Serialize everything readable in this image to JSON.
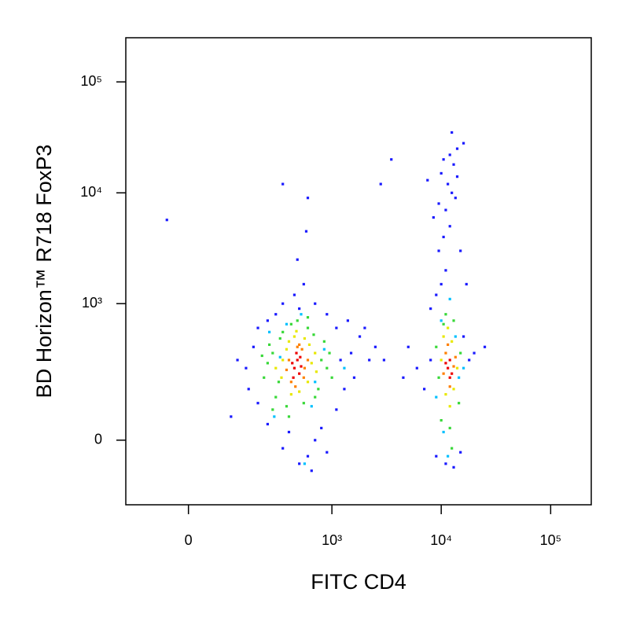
{
  "chart_data": {
    "type": "scatter",
    "xlabel": "FITC  CD4",
    "ylabel": "BD Horizon™ R718  FoxP3",
    "xscale": "logicle",
    "yscale": "logicle",
    "xlim": [
      -170,
      235000
    ],
    "ylim": [
      -210,
      250000
    ],
    "xticks": [
      0,
      {
        "value": 1000,
        "label": "10³"
      },
      {
        "value": 10000,
        "label": "10⁴"
      },
      {
        "value": 100000,
        "label": "10⁵"
      }
    ],
    "yticks": [
      0,
      {
        "value": 1000,
        "label": "10³"
      },
      {
        "value": 10000,
        "label": "10⁴"
      },
      {
        "value": 100000,
        "label": "10⁵"
      }
    ],
    "series": [
      {
        "color": "#1a1aff",
        "x": [
          150,
          180,
          200,
          1200,
          1500,
          1800,
          2200,
          1300,
          250,
          350,
          500,
          700,
          400,
          600,
          300,
          500,
          700,
          450,
          900,
          1100,
          160,
          120,
          200,
          1400,
          2500,
          900,
          350,
          800,
          250,
          1600,
          2000,
          550,
          480,
          580,
          350,
          600,
          -46,
          100,
          1100,
          650,
          8000,
          7000,
          16000,
          18000,
          6000,
          9000,
          13000,
          11000,
          15000,
          5000,
          4500,
          20000,
          9000,
          10000,
          11000,
          9500,
          10500,
          12000,
          11000,
          9500,
          12500,
          11500,
          10000,
          13000,
          12000,
          14000,
          10500,
          16000,
          12500,
          8500,
          13500,
          7500,
          3500,
          2800,
          15000,
          8000,
          25000,
          3000,
          17000,
          14000
        ],
        "y": [
          250,
          400,
          100,
          300,
          350,
          500,
          300,
          150,
          40,
          -20,
          -60,
          0,
          20,
          -40,
          800,
          900,
          1000,
          1200,
          800,
          600,
          150,
          300,
          600,
          700,
          400,
          -30,
          1000,
          30,
          700,
          200,
          600,
          1500,
          2500,
          4500,
          12000,
          9000,
          5700,
          60,
          80,
          -80,
          300,
          150,
          500,
          300,
          250,
          -40,
          -70,
          -60,
          -30,
          400,
          200,
          350,
          1200,
          1500,
          2000,
          3000,
          4000,
          5000,
          7000,
          8000,
          10000,
          12000,
          15000,
          18000,
          22000,
          25000,
          20000,
          28000,
          35000,
          6000,
          9000,
          13000,
          20000,
          12000,
          3000,
          900,
          400,
          300,
          1500,
          14000
        ]
      },
      {
        "color": "#00c0ff",
        "x": [
          260,
          700,
          330,
          850,
          290,
          650,
          520,
          380,
          1300,
          560,
          9000,
          14500,
          10000,
          13500,
          11500,
          16000,
          12000,
          10500
        ],
        "y": [
          550,
          180,
          320,
          380,
          60,
          90,
          800,
          650,
          250,
          -60,
          120,
          200,
          700,
          500,
          -40,
          250,
          1100,
          20
        ]
      },
      {
        "color": "#38d838",
        "x": [
          280,
          800,
          320,
          250,
          900,
          350,
          600,
          300,
          750,
          420,
          260,
          850,
          380,
          550,
          680,
          230,
          950,
          480,
          330,
          700,
          400,
          280,
          1000,
          600,
          220,
          9500,
          15000,
          10000,
          13000,
          12000,
          9000,
          14500,
          11000,
          12500,
          10500
        ],
        "y": [
          350,
          300,
          180,
          280,
          250,
          550,
          600,
          120,
          150,
          650,
          420,
          450,
          90,
          100,
          520,
          200,
          350,
          700,
          480,
          120,
          60,
          80,
          200,
          750,
          330,
          200,
          350,
          50,
          700,
          30,
          400,
          100,
          800,
          -20,
          650
        ]
      },
      {
        "color": "#e8e800",
        "x": [
          350,
          650,
          400,
          600,
          300,
          700,
          450,
          500,
          380,
          620,
          340,
          560,
          720,
          420,
          470,
          10000,
          14000,
          11000,
          12500,
          10500,
          13000,
          12000,
          11500
        ],
        "y": [
          300,
          280,
          450,
          180,
          250,
          350,
          500,
          140,
          380,
          420,
          200,
          480,
          230,
          130,
          560,
          300,
          250,
          130,
          450,
          500,
          150,
          90,
          600
        ]
      },
      {
        "color": "#ff8000",
        "x": [
          400,
          560,
          480,
          420,
          600,
          380,
          530,
          460,
          550,
          500,
          11000,
          13000,
          12000,
          10500,
          13500,
          11500
        ],
        "y": [
          300,
          250,
          400,
          180,
          300,
          240,
          380,
          160,
          200,
          420,
          350,
          260,
          160,
          220,
          320,
          420
        ]
      },
      {
        "color": "#ee0000",
        "x": [
          450,
          480,
          500,
          430,
          520,
          470,
          440,
          510,
          11500,
          12000,
          12500,
          11000,
          12000
        ],
        "y": [
          250,
          300,
          220,
          280,
          260,
          350,
          200,
          320,
          250,
          300,
          220,
          280,
          200
        ]
      }
    ]
  }
}
